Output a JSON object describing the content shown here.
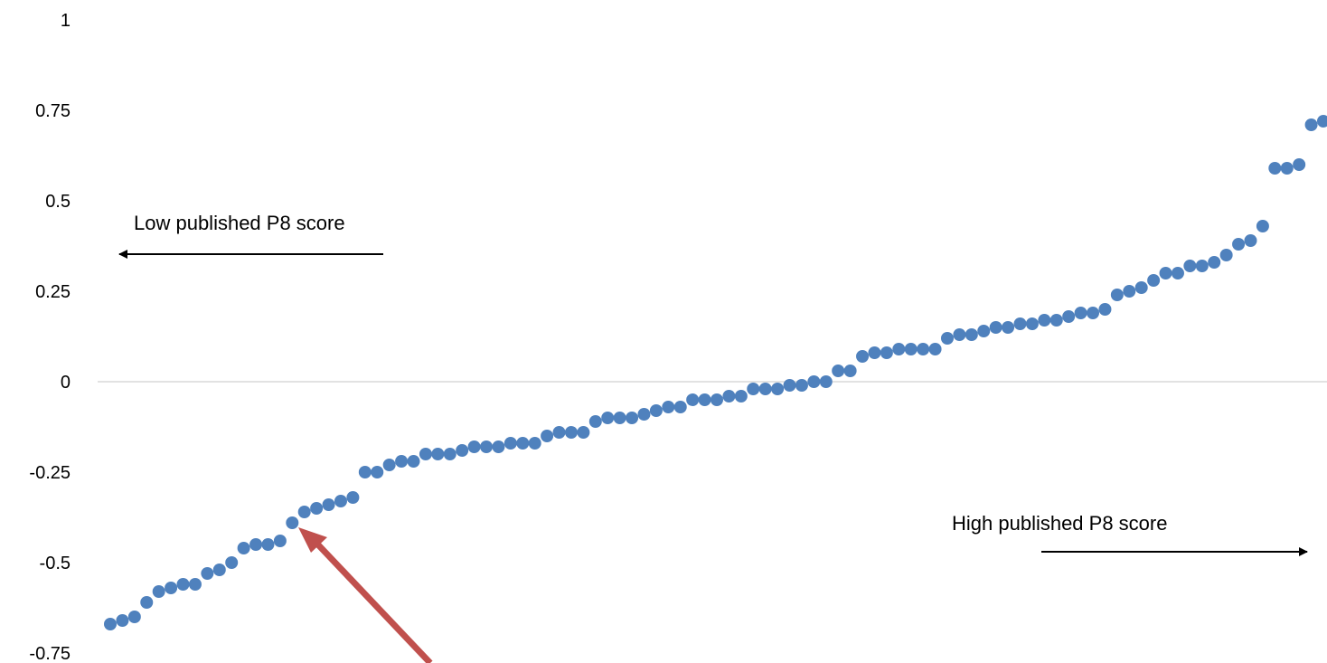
{
  "chart_data": {
    "type": "scatter",
    "title": "",
    "xlabel": "",
    "ylabel": "",
    "ylim": [
      -0.75,
      1
    ],
    "yticks": [
      "1",
      "0.75",
      "0.5",
      "0.25",
      "0",
      "-0.25",
      "-0.5",
      "-0.75"
    ],
    "yticks_values": [
      1,
      0.75,
      0.5,
      0.25,
      0,
      -0.25,
      -0.5,
      -0.75
    ],
    "grid": false,
    "zero_line": true,
    "marker_color": "#4f81bd",
    "arrow_color": "#c0504d",
    "axis_line_color": "#d9d9d9",
    "annotations": {
      "low": "Low published P8 score",
      "high": "High published P8 score"
    },
    "series": [
      {
        "values": [
          -0.67,
          -0.66,
          -0.65,
          -0.61,
          -0.58,
          -0.57,
          -0.56,
          -0.56,
          -0.53,
          -0.52,
          -0.5,
          -0.46,
          -0.45,
          -0.45,
          -0.44,
          -0.39,
          -0.36,
          -0.35,
          -0.34,
          -0.33,
          -0.32,
          -0.25,
          -0.25,
          -0.23,
          -0.22,
          -0.22,
          -0.2,
          -0.2,
          -0.2,
          -0.19,
          -0.18,
          -0.18,
          -0.18,
          -0.17,
          -0.17,
          -0.17,
          -0.15,
          -0.14,
          -0.14,
          -0.14,
          -0.11,
          -0.1,
          -0.1,
          -0.1,
          -0.09,
          -0.08,
          -0.07,
          -0.07,
          -0.05,
          -0.05,
          -0.05,
          -0.04,
          -0.04,
          -0.02,
          -0.02,
          -0.02,
          -0.01,
          -0.01,
          0.0,
          0.0,
          0.03,
          0.03,
          0.07,
          0.08,
          0.08,
          0.09,
          0.09,
          0.09,
          0.09,
          0.12,
          0.13,
          0.13,
          0.14,
          0.15,
          0.15,
          0.16,
          0.16,
          0.17,
          0.17,
          0.18,
          0.19,
          0.19,
          0.2,
          0.24,
          0.25,
          0.26,
          0.28,
          0.3,
          0.3,
          0.32,
          0.32,
          0.33,
          0.35,
          0.38,
          0.39,
          0.43,
          0.59,
          0.59,
          0.6,
          0.71,
          0.72
        ]
      }
    ]
  }
}
